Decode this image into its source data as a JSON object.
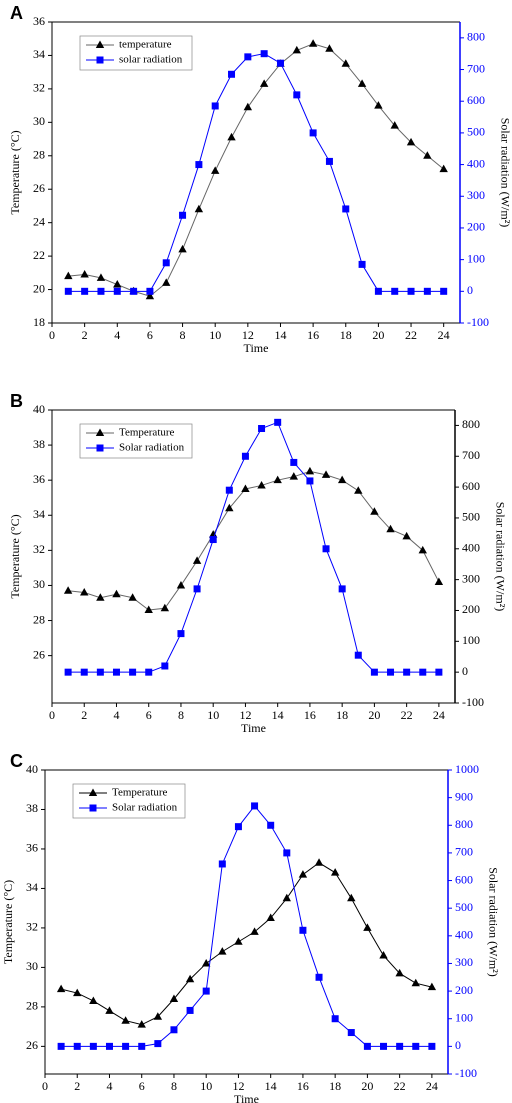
{
  "chart_data": [
    {
      "type": "line",
      "panel": "A",
      "x_label": "Time",
      "y_label": "Temperature (°C)",
      "y2_label": "Solar radiation (W/m²)",
      "x": [
        1,
        2,
        3,
        4,
        5,
        6,
        7,
        8,
        9,
        10,
        11,
        12,
        13,
        14,
        15,
        16,
        17,
        18,
        19,
        20,
        21,
        22,
        23,
        24
      ],
      "series": [
        {
          "name": "temperature",
          "color": "#000000",
          "line_color": "#666666",
          "marker": "triangle",
          "values": [
            20.8,
            20.9,
            20.7,
            20.3,
            19.9,
            19.6,
            20.4,
            22.4,
            24.8,
            27.1,
            29.1,
            30.9,
            32.3,
            33.5,
            34.3,
            34.7,
            34.4,
            33.5,
            32.3,
            31.0,
            29.8,
            28.8,
            28.0,
            27.2
          ]
        },
        {
          "name": "solar radiation",
          "color": "#0000ff",
          "line_color": "#0000ff",
          "marker": "square",
          "axis": "y2",
          "values": [
            0,
            0,
            0,
            0,
            0,
            0,
            90,
            240,
            400,
            585,
            685,
            740,
            750,
            720,
            620,
            500,
            410,
            260,
            85,
            0,
            0,
            0,
            0,
            0
          ]
        }
      ],
      "xlim": [
        0,
        25
      ],
      "xticks": [
        0,
        2,
        4,
        6,
        8,
        10,
        12,
        14,
        16,
        18,
        20,
        22,
        24
      ],
      "ylim": [
        18,
        36
      ],
      "yticks": [
        18,
        20,
        22,
        24,
        26,
        28,
        30,
        32,
        34,
        36
      ],
      "y2lim": [
        -100,
        850
      ],
      "y2ticks": [
        -100,
        0,
        100,
        200,
        300,
        400,
        500,
        600,
        700,
        800
      ],
      "y2_axis_color": "#0000ff",
      "legend": "upper left"
    },
    {
      "type": "line",
      "panel": "B",
      "x_label": "Time",
      "y_label": "Temperature (°C)",
      "y2_label": "Solar radiation (W/m²)",
      "x": [
        1,
        2,
        3,
        4,
        5,
        6,
        7,
        8,
        9,
        10,
        11,
        12,
        13,
        14,
        15,
        16,
        17,
        18,
        19,
        20,
        21,
        22,
        23,
        24
      ],
      "series": [
        {
          "name": "Temperature",
          "color": "#000000",
          "line_color": "#666666",
          "marker": "triangle",
          "values": [
            29.7,
            29.6,
            29.3,
            29.5,
            29.3,
            28.6,
            28.7,
            30.0,
            31.4,
            32.9,
            34.4,
            35.5,
            35.7,
            36.0,
            36.2,
            36.5,
            36.3,
            36.0,
            35.4,
            34.2,
            33.2,
            32.8,
            32.0,
            30.2
          ]
        },
        {
          "name": "Solar radiation",
          "color": "#0000ff",
          "line_color": "#0000ff",
          "marker": "square",
          "axis": "y2",
          "values": [
            0,
            0,
            0,
            0,
            0,
            0,
            20,
            125,
            270,
            430,
            590,
            700,
            790,
            810,
            680,
            620,
            400,
            270,
            55,
            0,
            0,
            0,
            0,
            0
          ]
        }
      ],
      "xlim": [
        0,
        25
      ],
      "xticks": [
        0,
        2,
        4,
        6,
        8,
        10,
        12,
        14,
        16,
        18,
        20,
        22,
        24
      ],
      "ylim": [
        23.3,
        40
      ],
      "yticks": [
        26,
        28,
        30,
        32,
        34,
        36,
        38,
        40
      ],
      "y2lim": [
        -100,
        850
      ],
      "y2ticks": [
        -100,
        0,
        100,
        200,
        300,
        400,
        500,
        600,
        700,
        800
      ],
      "y2_axis_color": "#000000",
      "legend": "upper left"
    },
    {
      "type": "line",
      "panel": "C",
      "x_label": "Time",
      "y_label": "Temperature (°C)",
      "y2_label": "Solar radiation (W/m²)",
      "x": [
        1,
        2,
        3,
        4,
        5,
        6,
        7,
        8,
        9,
        10,
        11,
        12,
        13,
        14,
        15,
        16,
        17,
        18,
        19,
        20,
        21,
        22,
        23,
        24
      ],
      "series": [
        {
          "name": "Temperature",
          "color": "#000000",
          "line_color": "#000000",
          "marker": "triangle",
          "values": [
            28.9,
            28.7,
            28.3,
            27.8,
            27.3,
            27.1,
            27.5,
            28.4,
            29.4,
            30.2,
            30.8,
            31.3,
            31.8,
            32.5,
            33.5,
            34.7,
            35.3,
            34.8,
            33.5,
            32.0,
            30.6,
            29.7,
            29.2,
            29.0
          ]
        },
        {
          "name": "Solar radiation",
          "color": "#0000ff",
          "line_color": "#0000ff",
          "marker": "square",
          "axis": "y2",
          "values": [
            0,
            0,
            0,
            0,
            0,
            0,
            10,
            60,
            130,
            200,
            660,
            795,
            870,
            800,
            700,
            420,
            250,
            100,
            50,
            0,
            0,
            0,
            0,
            0
          ]
        }
      ],
      "xlim": [
        0,
        25
      ],
      "xticks": [
        0,
        2,
        4,
        6,
        8,
        10,
        12,
        14,
        16,
        18,
        20,
        22,
        24
      ],
      "ylim": [
        24.6,
        40
      ],
      "yticks": [
        26,
        28,
        30,
        32,
        34,
        36,
        38,
        40
      ],
      "y2lim": [
        -100,
        1000
      ],
      "y2ticks": [
        -100,
        0,
        100,
        200,
        300,
        400,
        500,
        600,
        700,
        800,
        900,
        1000
      ],
      "y2_axis_color": "#0000ff",
      "legend": "upper left"
    }
  ]
}
